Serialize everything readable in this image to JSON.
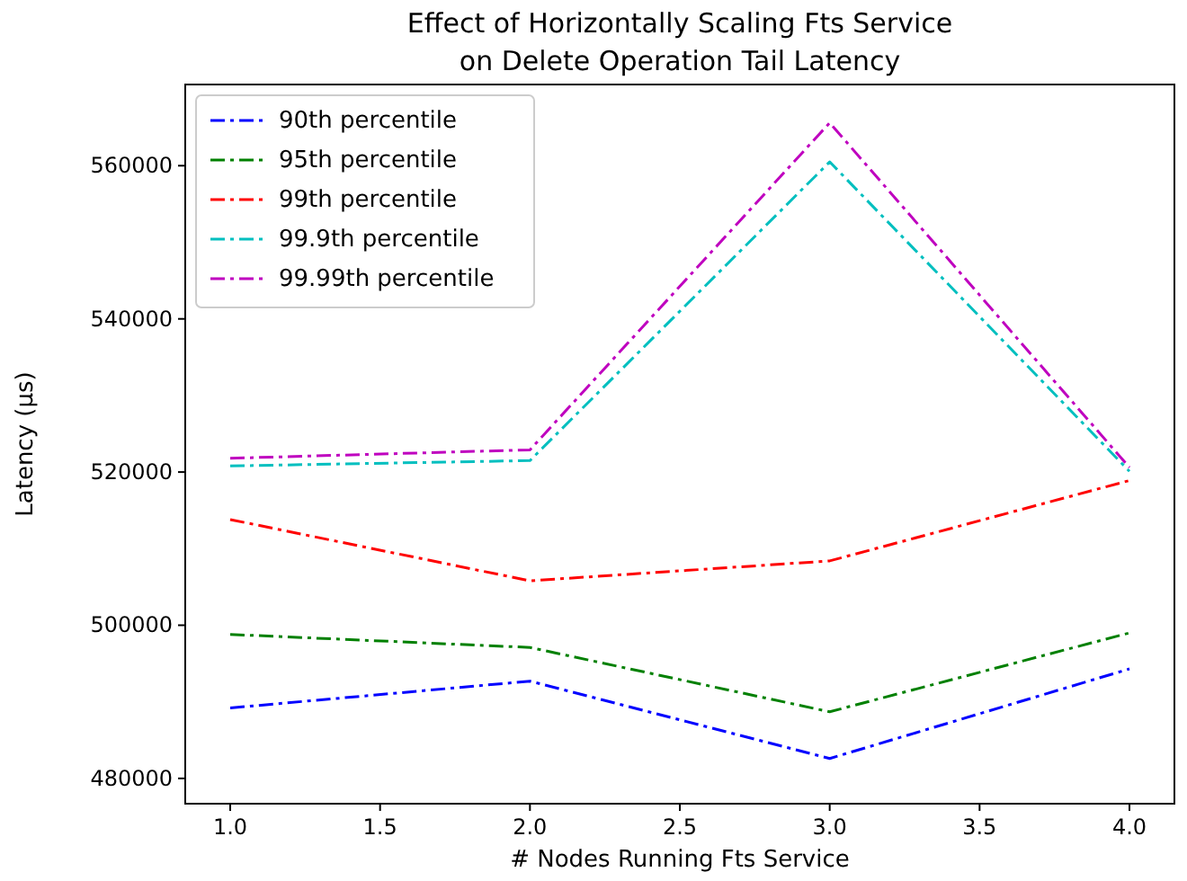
{
  "chart_data": {
    "type": "line",
    "title": "Effect of Horizontally Scaling Fts Service\non Delete Operation Tail Latency",
    "xlabel": "# Nodes Running Fts Service",
    "ylabel": "Latency (µs)",
    "x": [
      1,
      2,
      3,
      4
    ],
    "xlim": [
      0.85,
      4.15
    ],
    "xticks": [
      {
        "value": 1,
        "label": "1.0"
      },
      {
        "value": 1.5,
        "label": "1.5"
      },
      {
        "value": 2,
        "label": "2.0"
      },
      {
        "value": 2.5,
        "label": "2.5"
      },
      {
        "value": 3,
        "label": "3.0"
      },
      {
        "value": 3.5,
        "label": "3.5"
      },
      {
        "value": 4,
        "label": "4.0"
      }
    ],
    "ylim": [
      476700,
      570600
    ],
    "yticks": [
      480000,
      500000,
      520000,
      540000,
      560000
    ],
    "legend": "top left",
    "line_style": "dashdot",
    "grid": false,
    "series": [
      {
        "name": "90th percentile",
        "color": "#0000ff",
        "values": [
          489200,
          492700,
          482600,
          494300
        ]
      },
      {
        "name": "95th percentile",
        "color": "#008000",
        "values": [
          498800,
          497100,
          488700,
          499000
        ]
      },
      {
        "name": "99th percentile",
        "color": "#ff0000",
        "values": [
          513800,
          505800,
          508400,
          518900
        ]
      },
      {
        "name": "99.9th percentile",
        "color": "#00bfbf",
        "values": [
          520800,
          521500,
          560500,
          520100
        ]
      },
      {
        "name": "99.99th percentile",
        "color": "#bf00bf",
        "values": [
          521800,
          522900,
          565600,
          520600
        ]
      }
    ]
  }
}
